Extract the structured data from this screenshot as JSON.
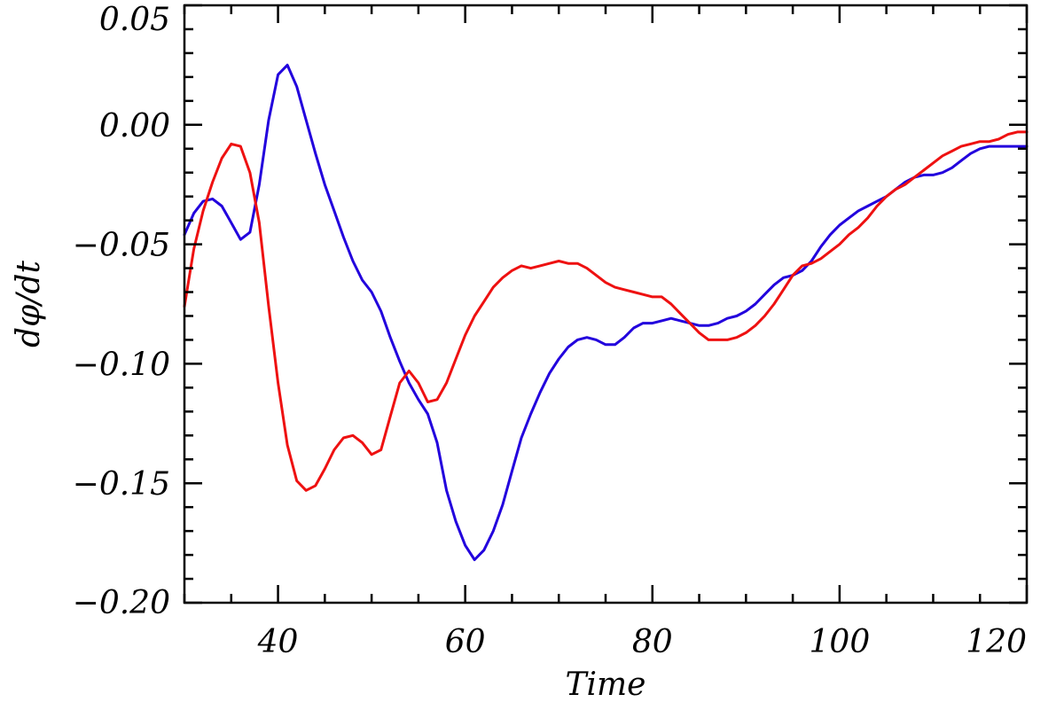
{
  "chart_data": {
    "type": "line",
    "xlabel": "Time",
    "ylabel": "dφ/dt",
    "xlim": [
      30,
      120
    ],
    "ylim": [
      -0.2,
      0.05
    ],
    "grid": false,
    "xticks": [
      40,
      60,
      80,
      100,
      120
    ],
    "xtick_labels": [
      "40",
      "60",
      "80",
      "100",
      "120"
    ],
    "yticks": [
      -0.2,
      -0.15,
      -0.1,
      -0.05,
      0.0,
      0.05
    ],
    "ytick_labels": [
      "−0.20",
      "−0.15",
      "−0.10",
      "−0.05",
      "0.00",
      "0.05"
    ],
    "x_minor_step": 5,
    "y_minor_step": 0.01,
    "series": [
      {
        "color": "#2200dd",
        "x": [
          30,
          31,
          32,
          33,
          34,
          35,
          36,
          37,
          38,
          39,
          40,
          41,
          42,
          43,
          44,
          45,
          46,
          47,
          48,
          49,
          50,
          51,
          52,
          53,
          54,
          55,
          56,
          57,
          58,
          59,
          60,
          61,
          62,
          63,
          64,
          65,
          66,
          67,
          68,
          69,
          70,
          71,
          72,
          73,
          74,
          75,
          76,
          77,
          78,
          79,
          80,
          81,
          82,
          83,
          84,
          85,
          86,
          87,
          88,
          89,
          90,
          91,
          92,
          93,
          94,
          95,
          96,
          97,
          98,
          99,
          100,
          101,
          102,
          103,
          104,
          105,
          106,
          107,
          108,
          109,
          110,
          111,
          112,
          113,
          114,
          115,
          116,
          117,
          118,
          119,
          120
        ],
        "values": [
          -0.046,
          -0.037,
          -0.032,
          -0.031,
          -0.034,
          -0.041,
          -0.048,
          -0.045,
          -0.025,
          0.002,
          0.021,
          0.025,
          0.016,
          0.002,
          -0.012,
          -0.025,
          -0.036,
          -0.047,
          -0.057,
          -0.065,
          -0.07,
          -0.078,
          -0.089,
          -0.099,
          -0.108,
          -0.115,
          -0.121,
          -0.133,
          -0.153,
          -0.166,
          -0.176,
          -0.182,
          -0.178,
          -0.17,
          -0.159,
          -0.145,
          -0.131,
          -0.121,
          -0.112,
          -0.104,
          -0.098,
          -0.093,
          -0.09,
          -0.089,
          -0.09,
          -0.092,
          -0.092,
          -0.089,
          -0.085,
          -0.083,
          -0.083,
          -0.082,
          -0.081,
          -0.082,
          -0.083,
          -0.084,
          -0.084,
          -0.083,
          -0.081,
          -0.08,
          -0.078,
          -0.075,
          -0.071,
          -0.067,
          -0.064,
          -0.063,
          -0.061,
          -0.057,
          -0.051,
          -0.046,
          -0.042,
          -0.039,
          -0.036,
          -0.034,
          -0.032,
          -0.03,
          -0.027,
          -0.024,
          -0.022,
          -0.021,
          -0.021,
          -0.02,
          -0.018,
          -0.015,
          -0.012,
          -0.01,
          -0.009,
          -0.009,
          -0.009,
          -0.009,
          -0.009
        ]
      },
      {
        "color": "#ee1111",
        "x": [
          30,
          31,
          32,
          33,
          34,
          35,
          36,
          37,
          38,
          39,
          40,
          41,
          42,
          43,
          44,
          45,
          46,
          47,
          48,
          49,
          50,
          51,
          52,
          53,
          54,
          55,
          56,
          57,
          58,
          59,
          60,
          61,
          62,
          63,
          64,
          65,
          66,
          67,
          68,
          69,
          70,
          71,
          72,
          73,
          74,
          75,
          76,
          77,
          78,
          79,
          80,
          81,
          82,
          83,
          84,
          85,
          86,
          87,
          88,
          89,
          90,
          91,
          92,
          93,
          94,
          95,
          96,
          97,
          98,
          99,
          100,
          101,
          102,
          103,
          104,
          105,
          106,
          107,
          108,
          109,
          110,
          111,
          112,
          113,
          114,
          115,
          116,
          117,
          118,
          119,
          120
        ],
        "values": [
          -0.076,
          -0.052,
          -0.036,
          -0.024,
          -0.014,
          -0.008,
          -0.009,
          -0.02,
          -0.041,
          -0.076,
          -0.108,
          -0.134,
          -0.149,
          -0.153,
          -0.151,
          -0.144,
          -0.136,
          -0.131,
          -0.13,
          -0.133,
          -0.138,
          -0.136,
          -0.122,
          -0.108,
          -0.103,
          -0.108,
          -0.116,
          -0.115,
          -0.108,
          -0.098,
          -0.088,
          -0.08,
          -0.074,
          -0.068,
          -0.064,
          -0.061,
          -0.059,
          -0.06,
          -0.059,
          -0.058,
          -0.057,
          -0.058,
          -0.058,
          -0.06,
          -0.063,
          -0.066,
          -0.068,
          -0.069,
          -0.07,
          -0.071,
          -0.072,
          -0.072,
          -0.075,
          -0.079,
          -0.083,
          -0.087,
          -0.09,
          -0.09,
          -0.09,
          -0.089,
          -0.087,
          -0.084,
          -0.08,
          -0.075,
          -0.069,
          -0.063,
          -0.059,
          -0.058,
          -0.056,
          -0.053,
          -0.05,
          -0.046,
          -0.043,
          -0.039,
          -0.034,
          -0.03,
          -0.027,
          -0.025,
          -0.022,
          -0.019,
          -0.016,
          -0.013,
          -0.011,
          -0.009,
          -0.008,
          -0.007,
          -0.007,
          -0.006,
          -0.004,
          -0.003,
          -0.003
        ]
      }
    ]
  }
}
